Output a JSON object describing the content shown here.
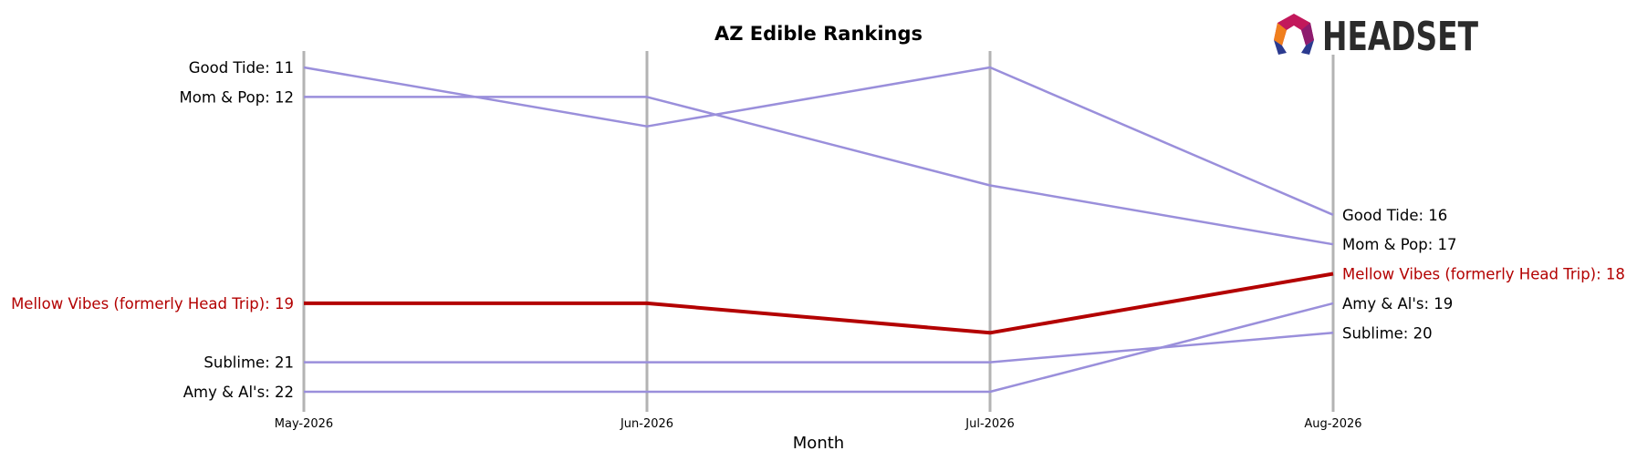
{
  "chart_data": {
    "type": "line",
    "title": "AZ Edible Rankings",
    "xlabel": "Month",
    "ylabel": "",
    "categories": [
      "May-2026",
      "Jun-2026",
      "Jul-2026",
      "Aug-2026"
    ],
    "y_inverted": true,
    "ylim": [
      11,
      22
    ],
    "highlight_color": "#b30000",
    "default_color": "#9a8fdb",
    "series": [
      {
        "name": "Good Tide",
        "values": [
          11,
          13,
          11,
          16
        ],
        "highlight": false
      },
      {
        "name": "Mom & Pop",
        "values": [
          12,
          12,
          15,
          17
        ],
        "highlight": false
      },
      {
        "name": "Mellow Vibes (formerly Head Trip)",
        "values": [
          19,
          19,
          20,
          18
        ],
        "highlight": true
      },
      {
        "name": "Sublime",
        "values": [
          21,
          21,
          21,
          20
        ],
        "highlight": false
      },
      {
        "name": "Amy & Al's",
        "values": [
          22,
          22,
          22,
          19
        ],
        "highlight": false
      }
    ]
  },
  "logo": {
    "text": "HEADSET",
    "icon": "headset-logo-icon"
  }
}
